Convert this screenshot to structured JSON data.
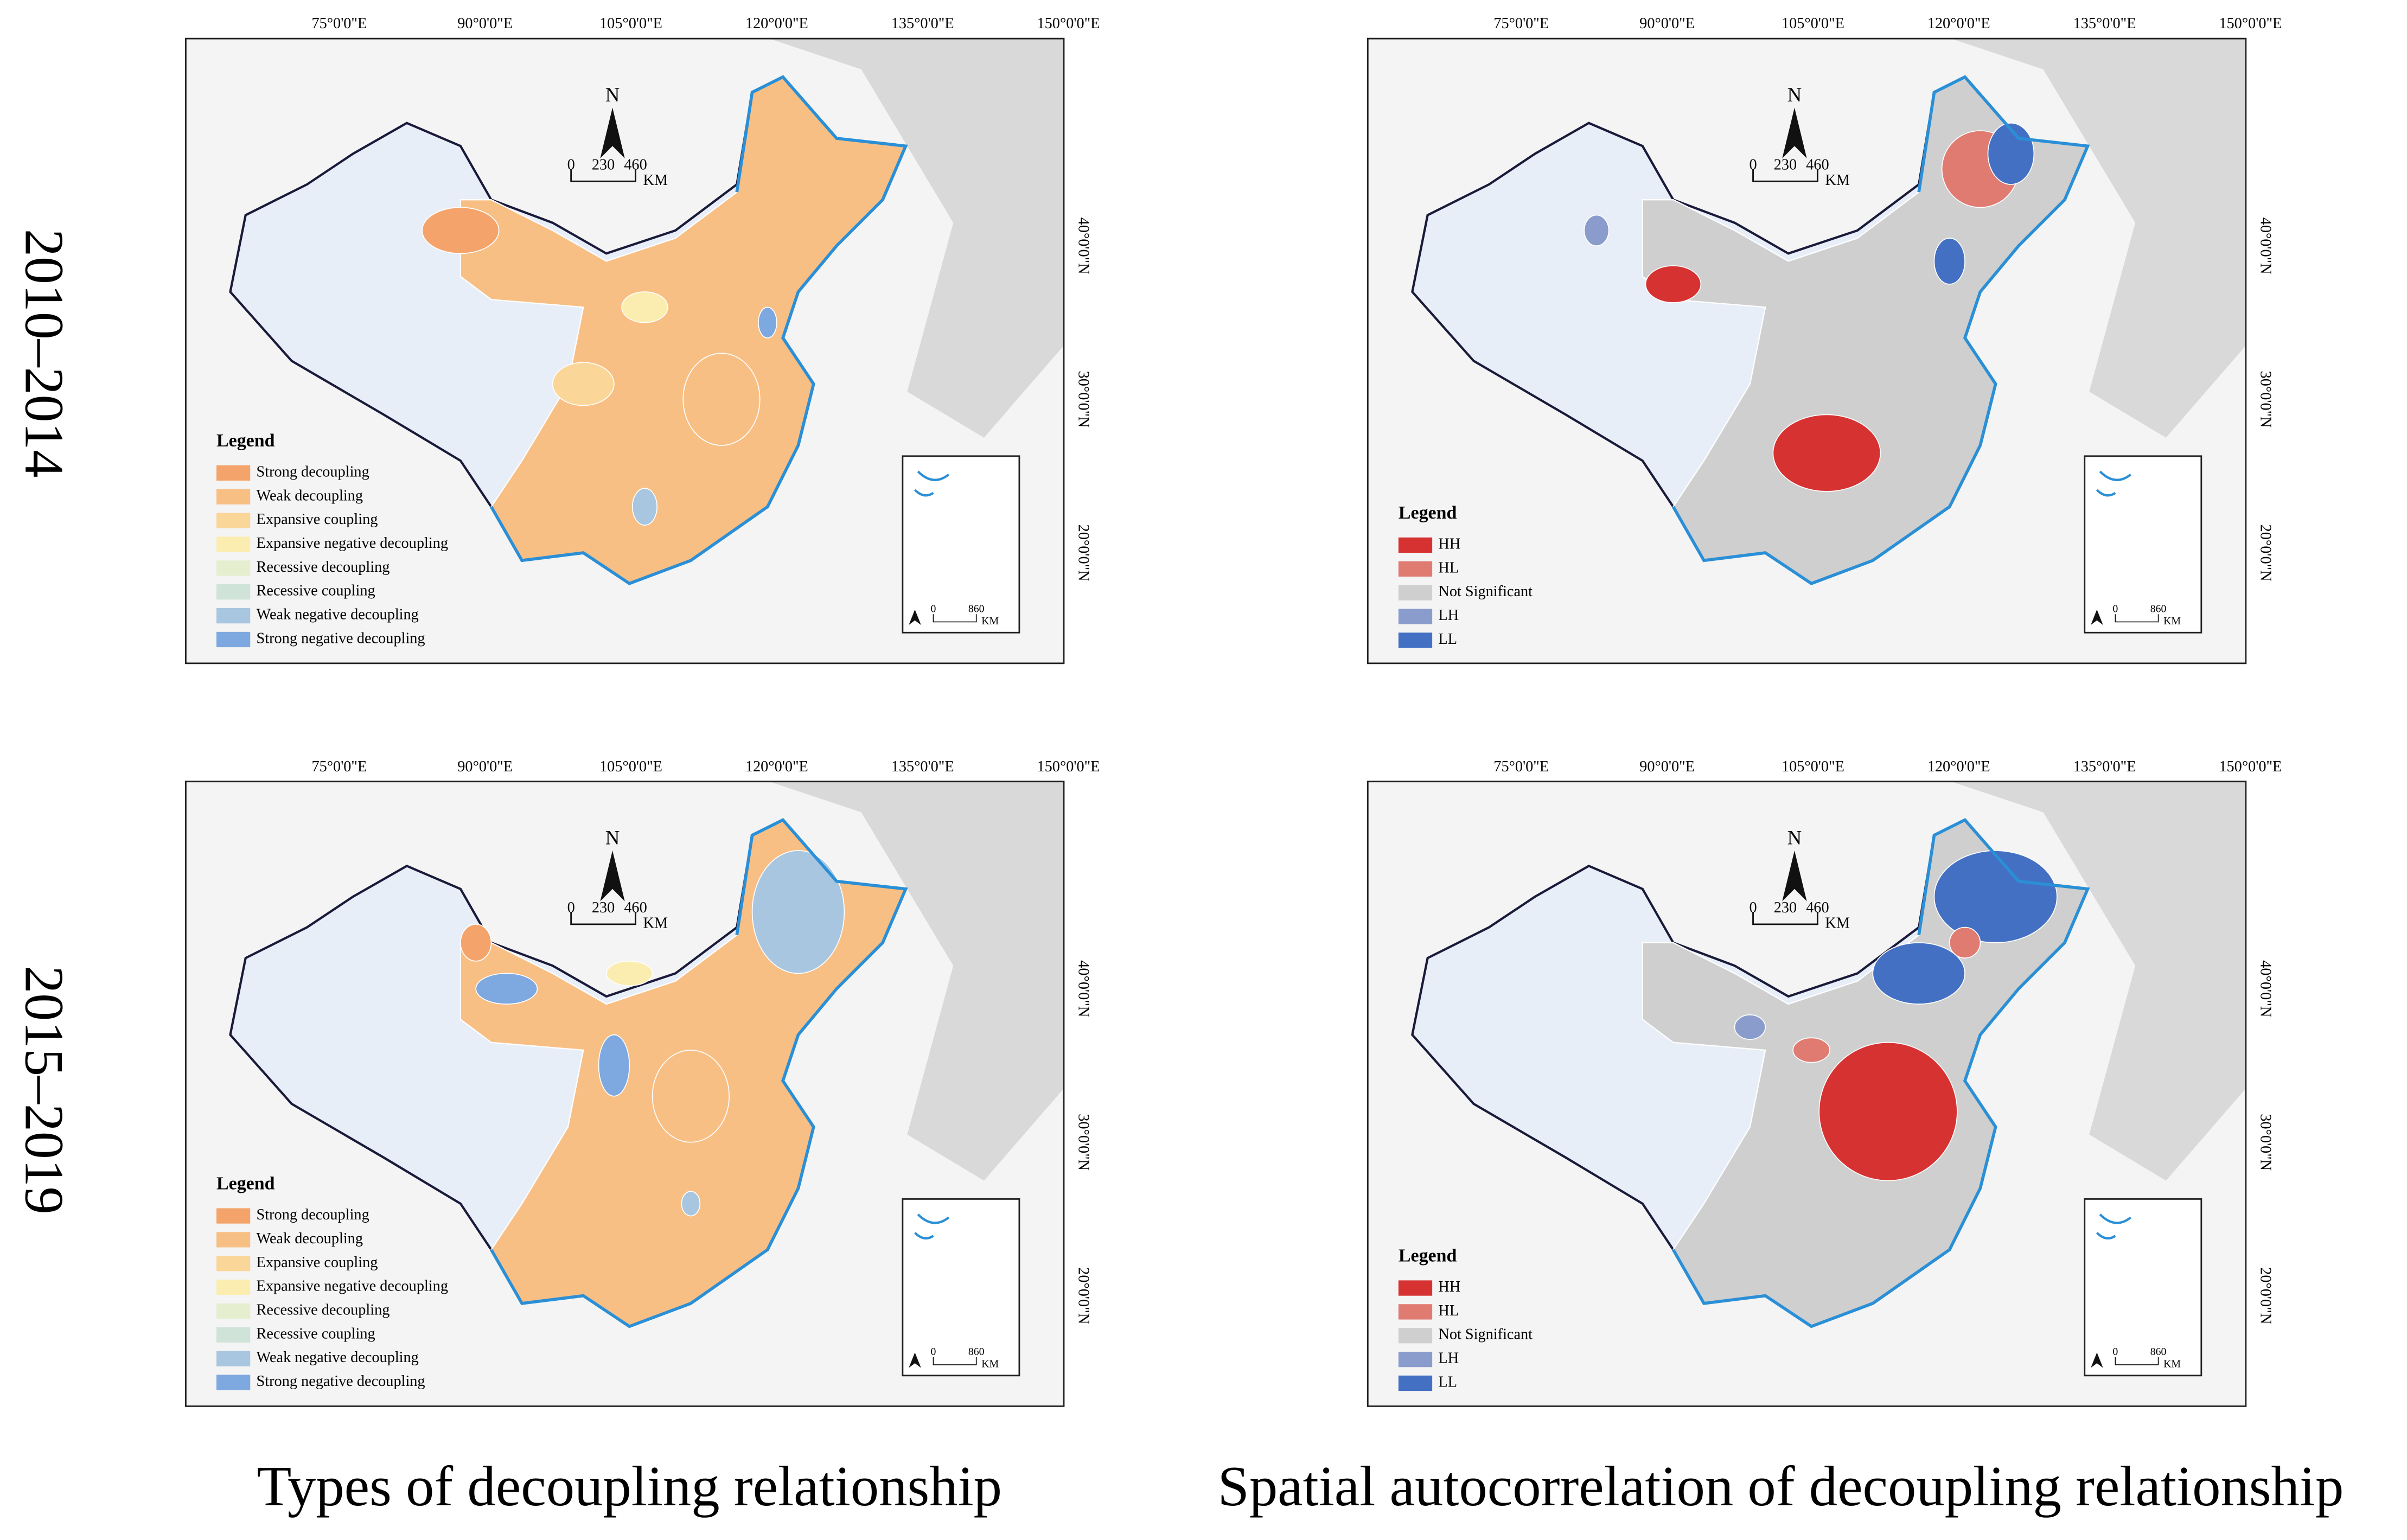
{
  "row_labels": [
    "2010–2014",
    "2015–2019"
  ],
  "column_captions": [
    "Types of decoupling relationship",
    "Spatial autocorrelation of decoupling relationship"
  ],
  "longitude_labels": [
    "75°0'0\"E",
    "90°0'0\"E",
    "105°0'0\"E",
    "120°0'0\"E",
    "135°0'0\"E",
    "150°0'0\"E"
  ],
  "latitude_labels": [
    "40°0'0\"N",
    "30°0'0\"N",
    "20°0'0\"N"
  ],
  "north_arrow": "N",
  "scale_bar": {
    "ticks": [
      "0",
      "230",
      "460"
    ],
    "unit": "KM"
  },
  "inset_scale": {
    "ticks": [
      "0",
      "860"
    ],
    "unit": "KM"
  },
  "legend_title": "Legend",
  "decoupling_legend": [
    {
      "label": "Strong decoupling",
      "color": "#f4a46a"
    },
    {
      "label": "Weak decoupling",
      "color": "#f8bf85"
    },
    {
      "label": "Expansive coupling",
      "color": "#fbd699"
    },
    {
      "label": "Expansive negative decoupling",
      "color": "#fbedaf"
    },
    {
      "label": "Recessive decoupling",
      "color": "#e6eed0"
    },
    {
      "label": "Recessive coupling",
      "color": "#cfe3d8"
    },
    {
      "label": "Weak negative decoupling",
      "color": "#a9c6e0"
    },
    {
      "label": "Strong negative decoupling",
      "color": "#7ea8e0"
    }
  ],
  "autocorrelation_legend": [
    {
      "label": "HH",
      "color": "#d73232"
    },
    {
      "label": "HL",
      "color": "#e07b72"
    },
    {
      "label": "Not Significant",
      "color": "#cfcfcf"
    },
    {
      "label": "LH",
      "color": "#8a9ccc"
    },
    {
      "label": "LL",
      "color": "#4470c4"
    }
  ]
}
